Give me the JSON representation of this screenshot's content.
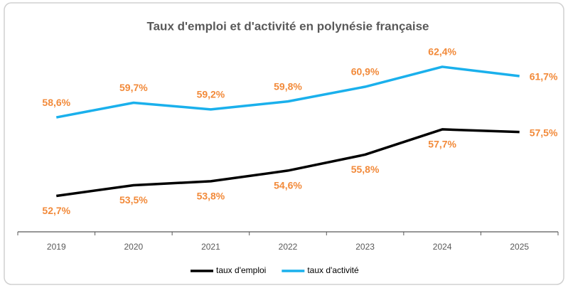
{
  "chart_data": {
    "type": "line",
    "title": "Taux d'emploi et d'activité en polynésie française",
    "categories": [
      "2019",
      "2020",
      "2021",
      "2022",
      "2023",
      "2024",
      "2025"
    ],
    "series": [
      {
        "name": "taux d'emploi",
        "color": "#000000",
        "values": [
          52.7,
          53.5,
          53.8,
          54.6,
          55.8,
          57.7,
          57.5
        ],
        "value_labels": [
          "52,7%",
          "53,5%",
          "53,8%",
          "54,6%",
          "55,8%",
          "57,7%",
          "57,5%"
        ]
      },
      {
        "name": "taux d'activité",
        "color": "#1ab0ec",
        "values": [
          58.6,
          59.7,
          59.2,
          59.8,
          60.9,
          62.4,
          61.7
        ],
        "value_labels": [
          "58,6%",
          "59,7%",
          "59,2%",
          "59,8%",
          "60,9%",
          "62,4%",
          "61,7%"
        ]
      }
    ],
    "value_label_color": "#f28a3a",
    "ylim": [
      50,
      64
    ],
    "grid": false,
    "legend": "bottom"
  }
}
